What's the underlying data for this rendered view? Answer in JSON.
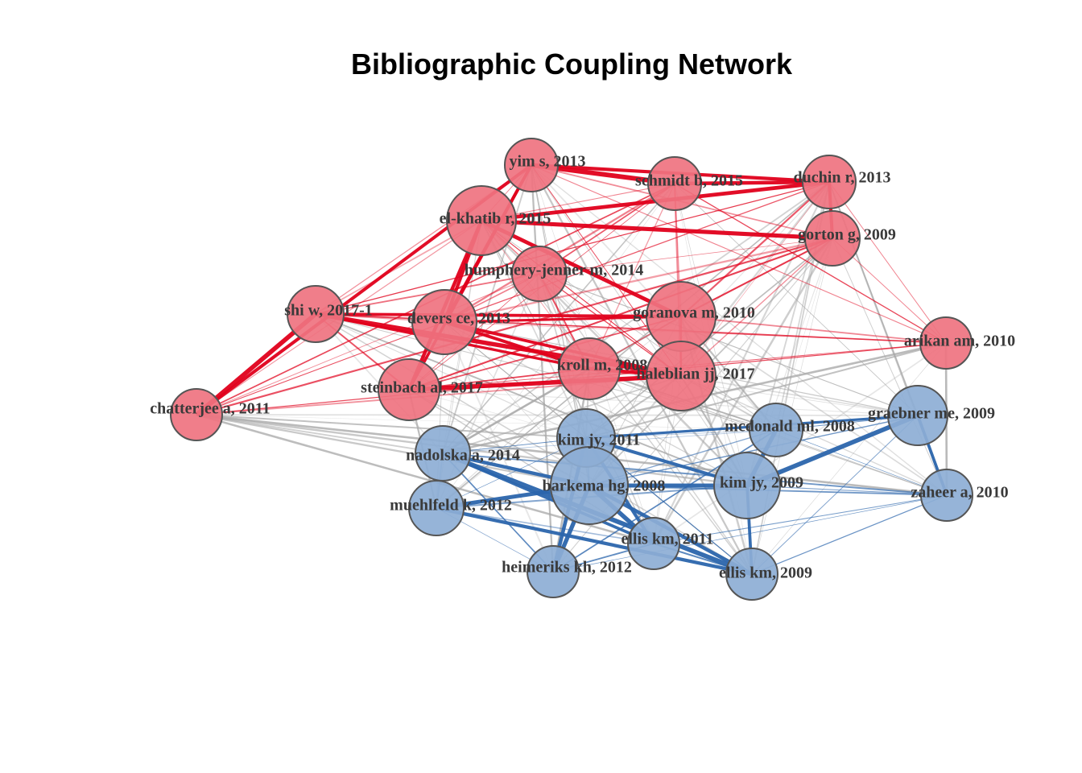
{
  "title": "Bibliographic Coupling Network",
  "colors": {
    "cluster_red_fill": "#ef7380",
    "cluster_blue_fill": "#8daed5",
    "edge_red": "#e0001b",
    "edge_blue": "#2b65ac",
    "edge_between": "#a8a8a8",
    "node_stroke": "#555555",
    "label_text": "#3a3a3a"
  },
  "clusters": [
    {
      "id": 1,
      "color_name": "red"
    },
    {
      "id": 2,
      "color_name": "blue"
    }
  ],
  "nodes": [
    {
      "id": "yim",
      "label": "yim s, 2013",
      "cluster": 1
    },
    {
      "id": "schmidt",
      "label": "schmidt b, 2015",
      "cluster": 1
    },
    {
      "id": "duchin",
      "label": "duchin r, 2013",
      "cluster": 1
    },
    {
      "id": "elkhatib",
      "label": "el-khatib r, 2015",
      "cluster": 1
    },
    {
      "id": "gorton",
      "label": "gorton g, 2009",
      "cluster": 1
    },
    {
      "id": "humphery",
      "label": "humphery-jenner m, 2014",
      "cluster": 1
    },
    {
      "id": "shi",
      "label": "shi w, 2017-1",
      "cluster": 1
    },
    {
      "id": "devers",
      "label": "devers ce, 2013",
      "cluster": 1
    },
    {
      "id": "goranova",
      "label": "goranova m, 2010",
      "cluster": 1
    },
    {
      "id": "arikan",
      "label": "arikan am, 2010",
      "cluster": 1
    },
    {
      "id": "kroll",
      "label": "kroll m, 2008",
      "cluster": 1
    },
    {
      "id": "haleblian",
      "label": "haleblian jj, 2017",
      "cluster": 1
    },
    {
      "id": "steinbach",
      "label": "steinbach al, 2017",
      "cluster": 1
    },
    {
      "id": "chatterjee",
      "label": "chatterjee a, 2011",
      "cluster": 1
    },
    {
      "id": "mcdonald",
      "label": "mcdonald ml, 2008",
      "cluster": 2
    },
    {
      "id": "graebner",
      "label": "graebner me, 2009",
      "cluster": 2
    },
    {
      "id": "kimjy2011",
      "label": "kim jy, 2011",
      "cluster": 2
    },
    {
      "id": "nadolska",
      "label": "nadolska a, 2014",
      "cluster": 2
    },
    {
      "id": "kimjy2009",
      "label": "kim jy, 2009",
      "cluster": 2
    },
    {
      "id": "barkema",
      "label": "barkema hg, 2008",
      "cluster": 2
    },
    {
      "id": "zaheer",
      "label": "zaheer a, 2010",
      "cluster": 2
    },
    {
      "id": "muehlfeld",
      "label": "muehlfeld k, 2012",
      "cluster": 2
    },
    {
      "id": "ellis2011",
      "label": "ellis km, 2011",
      "cluster": 2
    },
    {
      "id": "heimeriks",
      "label": "heimeriks kh, 2012",
      "cluster": 2
    },
    {
      "id": "ellis2009",
      "label": "ellis km, 2009",
      "cluster": 2
    }
  ]
}
